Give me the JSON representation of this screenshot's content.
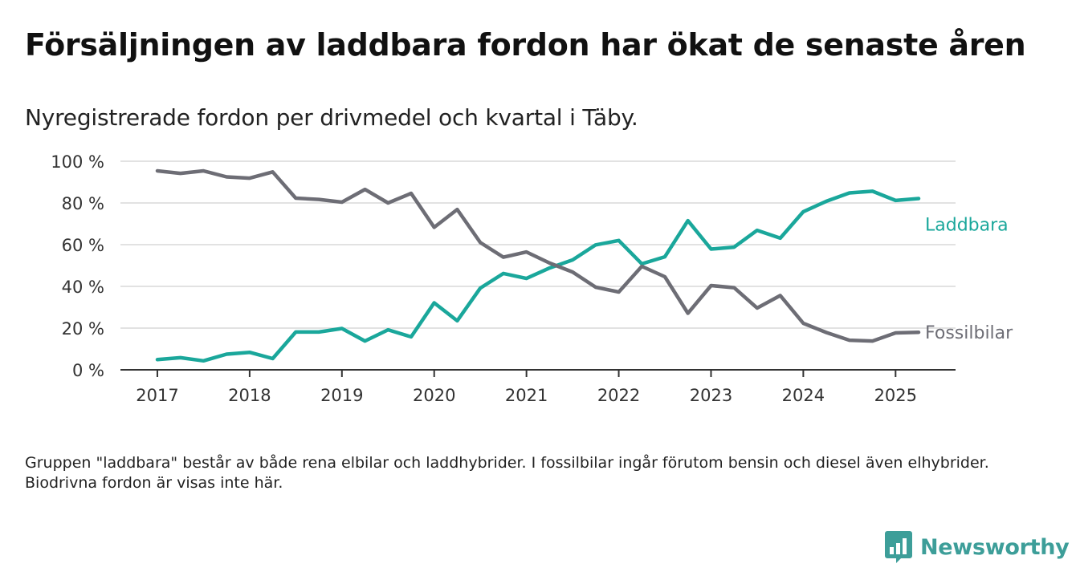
{
  "title": "Försäljningen av laddbara fordon har ökat de senaste åren",
  "subtitle": "Nyregistrerade fordon per drivmedel och kvartal i Täby.",
  "footnote": "Gruppen \"laddbara\" består av både rena elbilar och laddhybrider. I fossilbilar ingår förutom bensin och diesel även elhybrider. Biodrivna fordon är visas inte här.",
  "logo": {
    "text": "Newsworthy",
    "icon": "bar-chart-icon",
    "color": "#3d9e99"
  },
  "chart_data": {
    "type": "line",
    "grid": true,
    "ylim": [
      0,
      100
    ],
    "xlim": [
      2016.6,
      2025.65
    ],
    "y_ticks": [
      {
        "value": 0,
        "label": "0 %"
      },
      {
        "value": 20,
        "label": "20 %"
      },
      {
        "value": 40,
        "label": "40 %"
      },
      {
        "value": 60,
        "label": "60 %"
      },
      {
        "value": 80,
        "label": "80 %"
      },
      {
        "value": 100,
        "label": "100 %"
      }
    ],
    "x_ticks": [
      {
        "value": 2017,
        "label": "2017"
      },
      {
        "value": 2018,
        "label": "2018"
      },
      {
        "value": 2019,
        "label": "2019"
      },
      {
        "value": 2020,
        "label": "2020"
      },
      {
        "value": 2021,
        "label": "2021"
      },
      {
        "value": 2022,
        "label": "2022"
      },
      {
        "value": 2023,
        "label": "2023"
      },
      {
        "value": 2024,
        "label": "2024"
      },
      {
        "value": 2025,
        "label": "2025"
      }
    ],
    "x": [
      2017,
      2017.25,
      2017.5,
      2017.75,
      2018,
      2018.25,
      2018.5,
      2018.75,
      2019,
      2019.25,
      2019.5,
      2019.75,
      2020,
      2020.25,
      2020.5,
      2020.75,
      2021,
      2021.25,
      2021.5,
      2021.75,
      2022,
      2022.25,
      2022.5,
      2022.75,
      2023,
      2023.25,
      2023.5,
      2023.75,
      2024,
      2024.25,
      2024.5,
      2024.75,
      2025,
      2025.25
    ],
    "series": [
      {
        "name": "Laddbara",
        "color": "#1aa79b",
        "values": [
          4.9,
          5.8,
          4.3,
          7.5,
          8.4,
          5.4,
          18.1,
          18.1,
          19.8,
          13.8,
          19.2,
          15.8,
          32.1,
          23.5,
          39.2,
          46.2,
          43.8,
          48.8,
          52.7,
          59.9,
          62.0,
          50.8,
          54.2,
          71.5,
          57.9,
          58.8,
          66.9,
          63.1,
          75.8,
          80.8,
          84.8,
          85.6,
          81.2,
          82.1
        ]
      },
      {
        "name": "Fossilbilar",
        "color": "#6d6d75",
        "values": [
          95.4,
          94.2,
          95.4,
          92.5,
          91.9,
          94.9,
          82.3,
          81.7,
          80.4,
          86.5,
          80.0,
          84.6,
          68.3,
          76.9,
          61.0,
          54.0,
          56.5,
          51.2,
          46.9,
          39.6,
          37.3,
          49.6,
          44.6,
          27.1,
          40.4,
          39.4,
          29.6,
          35.6,
          22.3,
          17.9,
          14.2,
          13.8,
          17.7,
          18.0
        ]
      }
    ]
  }
}
